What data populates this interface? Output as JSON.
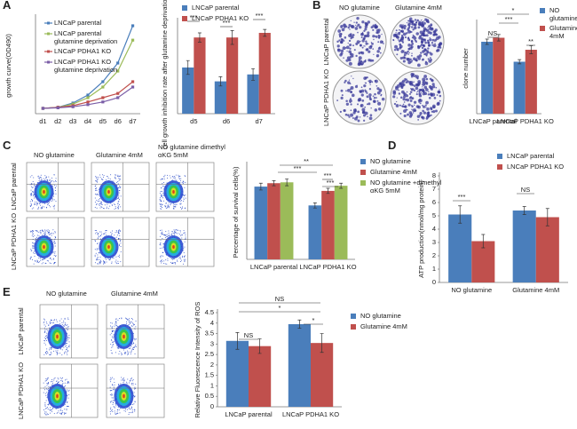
{
  "figure": {
    "panel_letters": [
      "A",
      "B",
      "C",
      "D",
      "E"
    ],
    "b_images": {
      "columns": [
        "NO glutamine",
        "Glutamine 4mM"
      ],
      "rows": [
        "LNCaP parental",
        "LNCaP PDHA1 KO"
      ]
    },
    "c_images": {
      "columns": [
        "NO glutamine",
        "Glutamine 4mM",
        "NO glutamine dimethyl αKG 5mM"
      ],
      "rows": [
        "LNCaP parental",
        "LNCaP PDHA1 KO"
      ]
    },
    "e_images": {
      "columns": [
        "NO glutamine",
        "Glutamine 4mM"
      ],
      "rows": [
        "LNCaP parental",
        "LNCaP PDHA1 KO"
      ]
    }
  },
  "chart_data": [
    {
      "type": "line",
      "y_label": "growth curve(OD490)",
      "categories": [
        "d1",
        "d2",
        "d3",
        "d4",
        "d5",
        "d6",
        "d7"
      ],
      "ylim": [
        0,
        1.8
      ],
      "series": [
        {
          "name": "LNCaP parental",
          "color": "#4a7ebb",
          "values": [
            0.1,
            0.12,
            0.2,
            0.35,
            0.6,
            0.95,
            1.65
          ]
        },
        {
          "name": "LNCaP parental glutamine deprivation",
          "color": "#9bbb59",
          "values": [
            0.1,
            0.12,
            0.18,
            0.3,
            0.5,
            0.8,
            1.38
          ]
        },
        {
          "name": "LNCaP PDHA1 KO",
          "color": "#c0504d",
          "values": [
            0.1,
            0.12,
            0.15,
            0.22,
            0.3,
            0.38,
            0.6
          ]
        },
        {
          "name": "LNCaP PDHA1 KO glutamine deprivation",
          "color": "#7b5ea7",
          "values": [
            0.1,
            0.11,
            0.13,
            0.17,
            0.22,
            0.3,
            0.5
          ]
        }
      ]
    },
    {
      "type": "bar",
      "y_label": "cell growth inhibition rate after glutamine deprivation(%)",
      "categories": [
        "d5",
        "d6",
        "d7"
      ],
      "ylim": [
        0,
        40
      ],
      "series": [
        {
          "name": "LNCaP parental",
          "color": "#4a7ebb",
          "values": [
            20,
            14,
            17
          ],
          "errors": [
            3,
            2,
            2.5
          ]
        },
        {
          "name": "LNCaP PDHA1 KO",
          "color": "#c0504d",
          "values": [
            33,
            33,
            35
          ],
          "errors": [
            2,
            3,
            1.5
          ]
        }
      ],
      "annotations": [
        "***",
        "***",
        "***"
      ]
    },
    {
      "type": "bar",
      "y_label": "clone number",
      "categories": [
        "LNCaP parental",
        "LNCaP PDHA1 KO"
      ],
      "ylim": [
        0,
        340
      ],
      "series": [
        {
          "name": "NO glutamine",
          "color": "#4a7ebb",
          "values": [
            270,
            195
          ],
          "errors": [
            10,
            8
          ]
        },
        {
          "name": "Glutamine 4mM",
          "color": "#c0504d",
          "values": [
            285,
            240
          ],
          "errors": [
            12,
            15
          ]
        }
      ],
      "annotations": [
        "NS",
        "***",
        "*",
        "**"
      ]
    },
    {
      "type": "bar",
      "y_label": "Percentage of survival cells(%)",
      "categories": [
        "LNCaP parental",
        "LNCaP PDHA1 KO"
      ],
      "ylim": [
        0,
        110
      ],
      "series": [
        {
          "name": "NO glutamine",
          "color": "#4a7ebb",
          "values": [
            85,
            63
          ],
          "errors": [
            4,
            3
          ]
        },
        {
          "name": "Glutamine 4mM",
          "color": "#c0504d",
          "values": [
            89,
            80
          ],
          "errors": [
            3,
            3
          ]
        },
        {
          "name": "NO glutamine +dimethyl αKG 5mM",
          "color": "#9bbb59",
          "values": [
            90,
            86
          ],
          "errors": [
            4,
            3
          ]
        }
      ],
      "annotations": [
        "***",
        "**",
        "***",
        "***"
      ]
    },
    {
      "type": "bar",
      "y_label": "ATP production(nmol/mg protein)",
      "categories": [
        "NO glutamine",
        "Glutamine 4mM"
      ],
      "ylim": [
        0,
        8
      ],
      "yticks": [
        0,
        1,
        2,
        3,
        4,
        5,
        6,
        7,
        8
      ],
      "series": [
        {
          "name": "LNCaP parental",
          "color": "#4a7ebb",
          "values": [
            5.1,
            5.4
          ],
          "errors": [
            0.65,
            0.3
          ]
        },
        {
          "name": "LNCaP PDHA1 KO",
          "color": "#c0504d",
          "values": [
            3.1,
            4.9
          ],
          "errors": [
            0.5,
            0.65
          ]
        }
      ],
      "annotations": [
        "***",
        "NS"
      ]
    },
    {
      "type": "bar",
      "y_label": "Relative Fluorescence Intensity of ROS",
      "categories": [
        "LNCaP parental",
        "LNCaP PDHA1 KO"
      ],
      "ylim": [
        0,
        4.5
      ],
      "yticks": [
        0,
        0.5,
        1,
        1.5,
        2,
        2.5,
        3,
        3.5,
        4,
        4.5
      ],
      "series": [
        {
          "name": "NO glutamine",
          "color": "#4a7ebb",
          "values": [
            3.15,
            3.95
          ],
          "errors": [
            0.4,
            0.2
          ]
        },
        {
          "name": "Glutamine 4mM",
          "color": "#c0504d",
          "values": [
            2.9,
            3.05
          ],
          "errors": [
            0.35,
            0.45
          ]
        }
      ],
      "annotations": [
        "NS",
        "*",
        "*",
        "NS"
      ]
    }
  ]
}
